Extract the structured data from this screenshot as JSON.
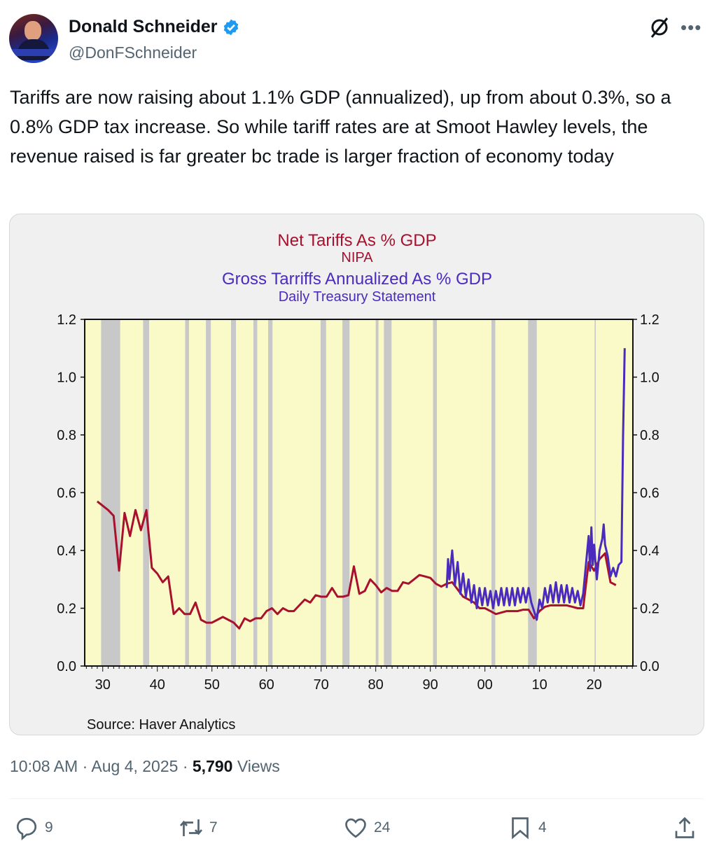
{
  "author": {
    "name": "Donald Schneider",
    "handle": "@DonFSchneider",
    "verified": true
  },
  "header_icons": [
    "grok-icon",
    "more-icon"
  ],
  "more_label": "•••",
  "tweet_text": "Tariffs are now raising about 1.1% GDP (annualized), up from about 0.3%, so a 0.8% GDP tax increase. So while tariff rates are at Smoot Hawley levels, the revenue raised is far greater bc trade is larger fraction of economy today",
  "meta": {
    "time": "10:08 AM",
    "date": "Aug 4, 2025",
    "views_count": "5,790",
    "views_label": "Views",
    "sep": "·"
  },
  "actions": {
    "replies": "9",
    "reposts": "7",
    "likes": "24",
    "bookmarks": "4"
  },
  "colors": {
    "net": "#a8102e",
    "gross": "#4a2bbd",
    "plot_bg": "#fafac8",
    "recession": "#c8c8c8",
    "card_bg": "#f0f0f0"
  },
  "chart_data": {
    "type": "line",
    "title_lines": [
      "Net Tariffs As % GDP",
      "NIPA",
      "Gross Tarriffs Annualized As % GDP",
      "Daily Treasury Statement"
    ],
    "source": "Source:  Haver Analytics",
    "xlim": [
      1926.7,
      2027.1
    ],
    "ylim": [
      0,
      1.2
    ],
    "x_ticks": [
      {
        "v": 1930,
        "l": "30"
      },
      {
        "v": 1940,
        "l": "40"
      },
      {
        "v": 1950,
        "l": "50"
      },
      {
        "v": 1960,
        "l": "60"
      },
      {
        "v": 1970,
        "l": "70"
      },
      {
        "v": 1980,
        "l": "80"
      },
      {
        "v": 1990,
        "l": "90"
      },
      {
        "v": 2000,
        "l": "00"
      },
      {
        "v": 2010,
        "l": "10"
      },
      {
        "v": 2020,
        "l": "20"
      }
    ],
    "y_ticks": [
      "0.0",
      "0.2",
      "0.4",
      "0.6",
      "0.8",
      "1.0",
      "1.2"
    ],
    "recessions": [
      [
        1929.7,
        1933.2
      ],
      [
        1937.4,
        1938.5
      ],
      [
        1945.1,
        1945.8
      ],
      [
        1948.9,
        1949.8
      ],
      [
        1953.5,
        1954.4
      ],
      [
        1957.6,
        1958.3
      ],
      [
        1960.3,
        1961.1
      ],
      [
        1969.9,
        1970.9
      ],
      [
        1973.9,
        1975.2
      ],
      [
        1980.0,
        1980.5
      ],
      [
        1981.5,
        1982.9
      ],
      [
        1990.5,
        1991.2
      ],
      [
        2001.2,
        2001.9
      ],
      [
        2007.9,
        2009.5
      ],
      [
        2020.1,
        2020.3
      ]
    ],
    "series": [
      {
        "name": "Net Tariffs As % GDP (NIPA)",
        "color": "#a8102e",
        "x": [
          1929,
          1931,
          1932,
          1933,
          1934,
          1935,
          1936,
          1937,
          1938,
          1939,
          1940,
          1941,
          1942,
          1943,
          1944,
          1945,
          1946,
          1947,
          1948,
          1949,
          1950,
          1951,
          1952,
          1953,
          1954,
          1955,
          1956,
          1957,
          1958,
          1959,
          1960,
          1961,
          1962,
          1963,
          1964,
          1965,
          1966,
          1967,
          1968,
          1969,
          1970,
          1971,
          1972,
          1973,
          1974,
          1975,
          1976,
          1977,
          1978,
          1979,
          1980,
          1981,
          1982,
          1983,
          1984,
          1985,
          1986,
          1987,
          1988,
          1989,
          1990,
          1991,
          1992,
          1993,
          1994,
          1995,
          1996,
          1997,
          1998,
          1999,
          2000,
          2001,
          2002,
          2003,
          2004,
          2005,
          2006,
          2007,
          2008,
          2009,
          2010,
          2011,
          2012,
          2013,
          2014,
          2015,
          2016,
          2017,
          2018,
          2019,
          2020,
          2021,
          2022,
          2023,
          2024
        ],
        "y": [
          0.57,
          0.54,
          0.52,
          0.33,
          0.53,
          0.45,
          0.54,
          0.47,
          0.54,
          0.34,
          0.32,
          0.29,
          0.31,
          0.18,
          0.2,
          0.18,
          0.18,
          0.22,
          0.16,
          0.15,
          0.15,
          0.16,
          0.17,
          0.16,
          0.15,
          0.13,
          0.165,
          0.155,
          0.165,
          0.165,
          0.19,
          0.2,
          0.18,
          0.2,
          0.19,
          0.19,
          0.21,
          0.23,
          0.22,
          0.245,
          0.24,
          0.24,
          0.27,
          0.24,
          0.24,
          0.245,
          0.345,
          0.25,
          0.26,
          0.3,
          0.28,
          0.255,
          0.27,
          0.26,
          0.26,
          0.29,
          0.285,
          0.3,
          0.315,
          0.31,
          0.305,
          0.285,
          0.275,
          0.285,
          0.29,
          0.265,
          0.24,
          0.23,
          0.22,
          0.2,
          0.2,
          0.19,
          0.18,
          0.185,
          0.19,
          0.19,
          0.19,
          0.195,
          0.195,
          0.165,
          0.19,
          0.205,
          0.21,
          0.21,
          0.21,
          0.21,
          0.205,
          0.2,
          0.2,
          0.36,
          0.33,
          0.37,
          0.39,
          0.29,
          0.28
        ]
      },
      {
        "name": "Gross Tariffs Annualized As % GDP (Daily Treasury Statement)",
        "color": "#4a2bbd",
        "x": [
          1993.0,
          1993.25,
          1993.5,
          1994.0,
          1994.5,
          1995.0,
          1995.5,
          1996.0,
          1996.5,
          1997.0,
          1997.5,
          1998.0,
          1998.5,
          1999.0,
          1999.5,
          2000.0,
          2000.5,
          2001.0,
          2001.5,
          2002.0,
          2002.5,
          2003.0,
          2003.5,
          2004.0,
          2004.5,
          2005.0,
          2005.5,
          2006.0,
          2006.5,
          2007.0,
          2007.5,
          2008.0,
          2008.5,
          2009.0,
          2009.5,
          2010.0,
          2010.5,
          2011.0,
          2011.5,
          2012.0,
          2012.5,
          2013.0,
          2013.5,
          2014.0,
          2014.5,
          2015.0,
          2015.5,
          2016.0,
          2016.5,
          2017.0,
          2017.5,
          2018.0,
          2018.5,
          2019.0,
          2019.25,
          2019.5,
          2019.75,
          2020.0,
          2020.5,
          2021.0,
          2021.5,
          2021.75,
          2022.0,
          2022.5,
          2023.0,
          2023.5,
          2024.0,
          2024.5,
          2025.0,
          2025.3,
          2025.6
        ],
        "y": [
          0.27,
          0.37,
          0.3,
          0.4,
          0.28,
          0.36,
          0.25,
          0.32,
          0.24,
          0.3,
          0.22,
          0.28,
          0.2,
          0.27,
          0.21,
          0.27,
          0.21,
          0.26,
          0.2,
          0.26,
          0.21,
          0.27,
          0.21,
          0.27,
          0.21,
          0.27,
          0.21,
          0.27,
          0.22,
          0.27,
          0.22,
          0.27,
          0.22,
          0.19,
          0.16,
          0.23,
          0.2,
          0.27,
          0.22,
          0.28,
          0.22,
          0.29,
          0.22,
          0.28,
          0.22,
          0.28,
          0.22,
          0.27,
          0.22,
          0.26,
          0.21,
          0.25,
          0.35,
          0.45,
          0.33,
          0.48,
          0.35,
          0.42,
          0.3,
          0.4,
          0.44,
          0.49,
          0.42,
          0.38,
          0.31,
          0.34,
          0.31,
          0.35,
          0.36,
          0.8,
          1.1
        ]
      }
    ]
  }
}
